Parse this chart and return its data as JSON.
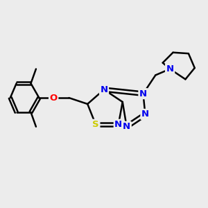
{
  "background_color": "#ececec",
  "bond_color": "#000000",
  "atom_colors": {
    "N": "#0000ee",
    "S": "#cccc00",
    "O": "#ff0000",
    "C": "#000000"
  },
  "bond_width": 1.8,
  "figsize": [
    3.0,
    3.0
  ],
  "dpi": 100
}
